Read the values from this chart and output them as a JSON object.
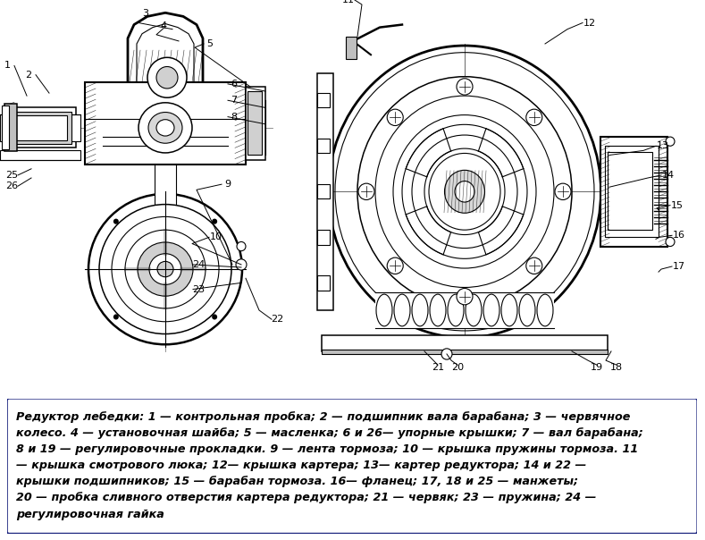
{
  "bg_color": "#ffffff",
  "fig_width": 7.89,
  "fig_height": 6.04,
  "dpi": 100,
  "diagram_bg": "#ffffff",
  "legend_border_color": "#1a237e",
  "legend_bg_color": "#ffffff",
  "legend_text_color": "#000000",
  "legend_fontsize": 9.2,
  "legend_bold_fontsize": 9.2,
  "legend_lines": [
    "Редуктор лебедки: 1 — контрольная пробка; 2 — подшипник вала барабана; 3 — червячное",
    "колесо. 4 — установочная шайба; 5 — масленка; 6 и 26— упорные крышки; 7 — вал барабана;",
    "8 и 19 — регулировочные прокладки. 9 — лента тормоза; 10 — крышка пружины тормоза. 11",
    "— крышка смотрового люка; 12— крышка картера; 13— картер редуктора; 14 и 22 —",
    "крышки подшипников; 15 — барабан тормоза. 16— фланец; 17, 18 и 25 — манжеты;",
    "20 — пробка сливного отверстия картера редуктора; 21 — червяк; 23 — пружина; 24 —",
    "регулировочная гайка"
  ],
  "hatch_color": "#000000",
  "line_color": "#000000",
  "diagram_gray": "#a0a0a0",
  "diagram_light": "#e8e8e8",
  "diagram_mid": "#c0c0c0"
}
